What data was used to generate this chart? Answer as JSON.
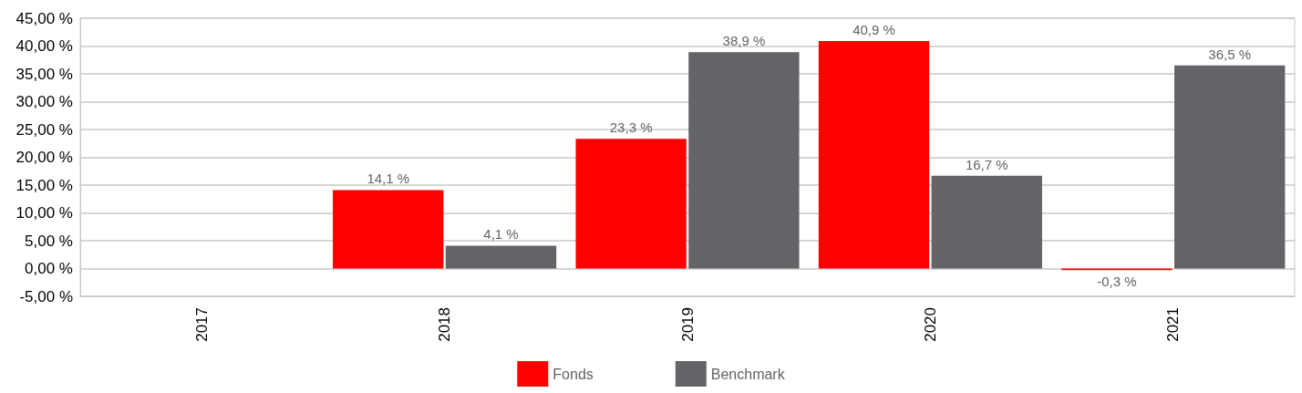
{
  "chart_data": {
    "type": "bar",
    "categories": [
      "2017",
      "2018",
      "2019",
      "2020",
      "2021"
    ],
    "series": [
      {
        "name": "Fonds",
        "color": "#ff0000",
        "values": [
          null,
          14.1,
          23.3,
          40.9,
          -0.3
        ],
        "value_labels": [
          null,
          "14,1 %",
          "23,3 %",
          "40,9 %",
          "-0,3 %"
        ]
      },
      {
        "name": "Benchmark",
        "color": "#636368",
        "values": [
          null,
          4.1,
          38.9,
          16.7,
          36.5
        ],
        "value_labels": [
          null,
          "4,1 %",
          "38,9 %",
          "16,7 %",
          "36,5 %"
        ]
      }
    ],
    "ylim": [
      -5,
      45
    ],
    "yticks": [
      {
        "value": -5,
        "label": "-5,00 %"
      },
      {
        "value": 0,
        "label": "0,00 %"
      },
      {
        "value": 5,
        "label": "5,00 %"
      },
      {
        "value": 10,
        "label": "10,00 %"
      },
      {
        "value": 15,
        "label": "15,00 %"
      },
      {
        "value": 20,
        "label": "20,00 %"
      },
      {
        "value": 25,
        "label": "25,00 %"
      },
      {
        "value": 30,
        "label": "30,00 %"
      },
      {
        "value": 35,
        "label": "35,00 %"
      },
      {
        "value": 40,
        "label": "40,00 %"
      },
      {
        "value": 45,
        "label": "45,00 %"
      }
    ],
    "grid": "y",
    "legend": "bottom"
  }
}
